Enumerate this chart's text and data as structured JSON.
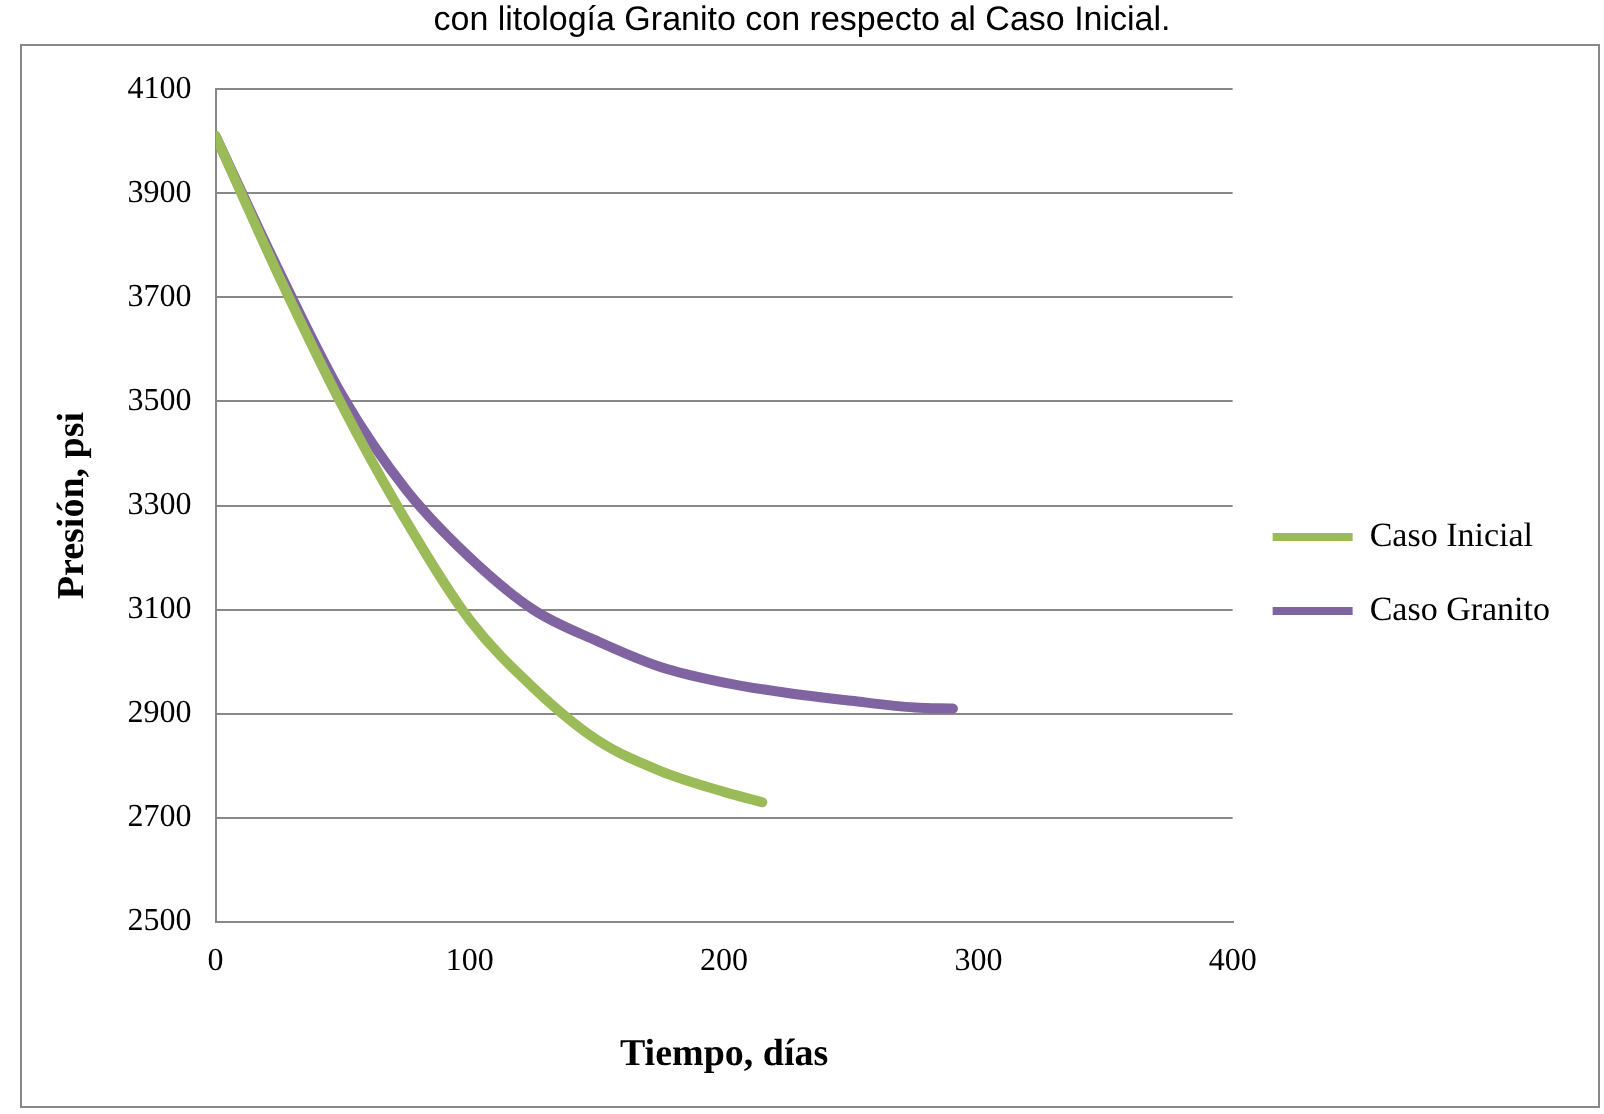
{
  "chart_data": {
    "type": "line",
    "title": "con litología Granito con respecto al Caso Inicial.",
    "xlabel": "Tiempo, días",
    "ylabel": "Presión, psi",
    "xlim": [
      0,
      400
    ],
    "xticks": [
      0,
      100,
      200,
      300,
      400
    ],
    "ylim": [
      2500,
      4100
    ],
    "yticks": [
      2500,
      2700,
      2900,
      3100,
      3300,
      3500,
      3700,
      3900,
      4100
    ],
    "grid": "y",
    "legend": "right",
    "marker": "none",
    "series": [
      {
        "name": "Caso Inicial",
        "color": "#9bbb59",
        "x": [
          0,
          25,
          50,
          75,
          100,
          125,
          150,
          175,
          200,
          215
        ],
        "values": [
          4010,
          3740,
          3490,
          3270,
          3080,
          2950,
          2850,
          2790,
          2750,
          2730
        ]
      },
      {
        "name": "Caso Granito",
        "color": "#8064a2",
        "x": [
          0,
          25,
          50,
          75,
          100,
          125,
          150,
          175,
          200,
          225,
          250,
          275,
          290
        ],
        "values": [
          4010,
          3750,
          3510,
          3330,
          3200,
          3100,
          3040,
          2990,
          2960,
          2940,
          2925,
          2912,
          2910
        ]
      }
    ]
  }
}
